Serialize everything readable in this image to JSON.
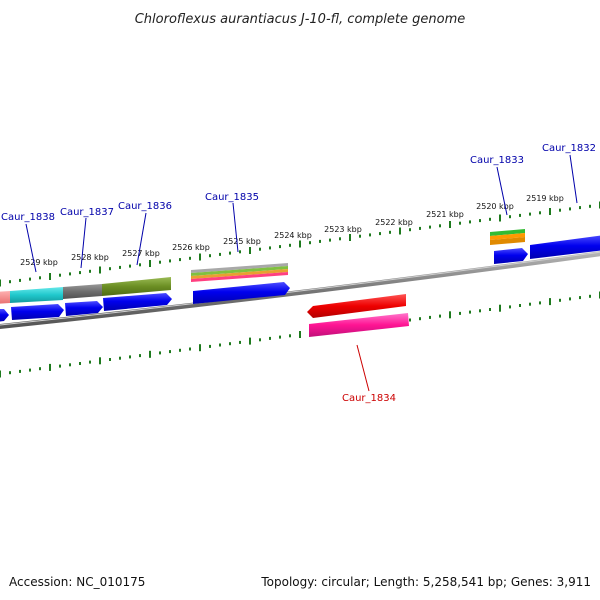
{
  "title": "Chloroflexus aurantiacus J-10-fl, complete genome",
  "footer": {
    "accession": "Accession: NC_010175",
    "summary": "Topology: circular; Length: 5,258,541 bp; Genes: 3,911"
  },
  "colors": {
    "backbone": "#7a7a7a",
    "tick": "#1e7a1e",
    "label_blue": "#0000aa",
    "label_red": "#cc0000",
    "gene_blue": "#0000ee"
  },
  "scale_labels": [
    "2529 kbp",
    "2528 kbp",
    "2527 kbp",
    "2526 kbp",
    "2525 kbp",
    "2524 kbp",
    "2523 kbp",
    "2522 kbp",
    "2521 kbp",
    "2520 kbp",
    "2519 kbp"
  ],
  "genes": [
    {
      "name": "Caur_1838",
      "color": "#0000aa"
    },
    {
      "name": "Caur_1837",
      "color": "#0000aa"
    },
    {
      "name": "Caur_1836",
      "color": "#0000aa"
    },
    {
      "name": "Caur_1835",
      "color": "#0000aa"
    },
    {
      "name": "Caur_1834",
      "color": "#cc0000"
    },
    {
      "name": "Caur_1833",
      "color": "#0000aa"
    },
    {
      "name": "Caur_1832",
      "color": "#0000aa"
    }
  ]
}
